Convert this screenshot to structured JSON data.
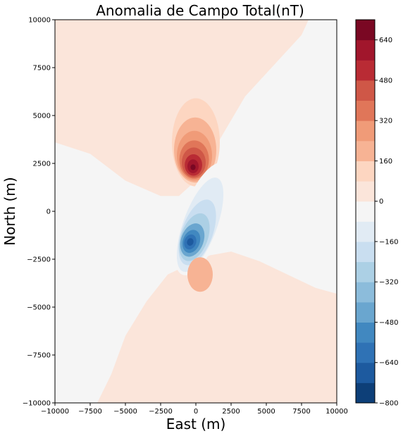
{
  "chart_data": {
    "type": "contour",
    "title": "Anomalia de Campo Total(nT)",
    "xlabel": "East (m)",
    "ylabel": "North (m)",
    "xlim": [
      -10000,
      10000
    ],
    "ylim": [
      -10000,
      10000
    ],
    "xticks": [
      -10000,
      -7500,
      -5000,
      -2500,
      0,
      2500,
      5000,
      7500,
      10000
    ],
    "yticks": [
      -10000,
      -7500,
      -5000,
      -2500,
      0,
      2500,
      5000,
      7500,
      10000
    ],
    "xtick_labels": [
      "−10000",
      "−7500",
      "−5000",
      "−2500",
      "0",
      "2500",
      "5000",
      "7500",
      "10000"
    ],
    "ytick_labels": [
      "−10000",
      "−7500",
      "−5000",
      "−2500",
      "0",
      "2500",
      "5000",
      "7500",
      "10000"
    ],
    "colormap": "RdBu_r",
    "colorbar": {
      "range": [
        -800,
        720
      ],
      "levels": [
        -800,
        -720,
        -640,
        -560,
        -480,
        -400,
        -320,
        -240,
        -160,
        -80,
        0,
        80,
        160,
        240,
        320,
        400,
        480,
        560,
        640,
        720
      ],
      "ticks": [
        -800,
        -640,
        -480,
        -320,
        -160,
        0,
        160,
        320,
        480,
        640
      ],
      "tick_labels": [
        "−800",
        "−640",
        "−480",
        "−320",
        "−160",
        "0",
        "160",
        "320",
        "480",
        "640"
      ],
      "colors": [
        "#0d3f78",
        "#1d5a9f",
        "#2f72b5",
        "#4188c0",
        "#6aa6cf",
        "#8cbcdb",
        "#acd0e5",
        "#c9def0",
        "#e1ebf4",
        "#f5f5f5",
        "#fbe5da",
        "#fdd6c1",
        "#f7b394",
        "#f09b78",
        "#e07659",
        "#cf5747",
        "#b92b34",
        "#a1162c",
        "#7a0823"
      ]
    },
    "features": {
      "positive_peak": {
        "x": -200,
        "y": 2300,
        "value_nT": 700
      },
      "negative_peak": {
        "x": -400,
        "y": -1600,
        "value_nT": -760
      },
      "secondary_positive": {
        "x": 300,
        "y": -3300,
        "value_nT": 60
      }
    }
  }
}
